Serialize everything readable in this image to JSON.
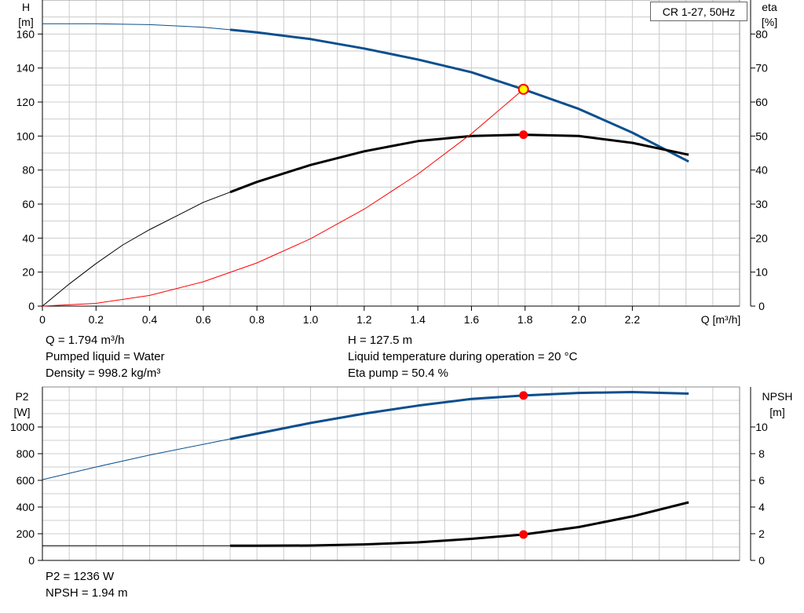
{
  "legend": "CR 1-27, 50Hz",
  "info_top": {
    "q": "Q = 1.794 m³/h",
    "liquid": "Pumped liquid = Water",
    "density": "Density = 998.2 kg/m³",
    "h": "H = 127.5 m",
    "temperature": "Liquid temperature during operation = 20 °C",
    "eta": "Eta pump = 50.4 %"
  },
  "info_bottom": {
    "p2": "P2 = 1236 W",
    "npsh": "NPSH = 1.94 m"
  },
  "colors": {
    "head": "#0b4f8e",
    "eta": "#000000",
    "system": "#ff0000",
    "grid": "#cccccc",
    "duty": "#ff0000",
    "duty_head_fill": "#ffff00"
  },
  "chart_data": [
    {
      "type": "line",
      "name": "top",
      "xlabel": "Q [m³/h]",
      "ylabel_left": [
        "H",
        "[m]"
      ],
      "ylabel_right": [
        "eta",
        "[%]"
      ],
      "xlim": [
        0,
        2.6
      ],
      "ylim_left": [
        0,
        180
      ],
      "ylim_right": [
        0,
        90
      ],
      "x_ticks": [
        "0",
        "0.2",
        "0.4",
        "0.6",
        "0.8",
        "1.0",
        "1.2",
        "1.4",
        "1.6",
        "1.8",
        "2.0",
        "2.2"
      ],
      "x_tick_values": [
        0,
        0.2,
        0.4,
        0.6,
        0.8,
        1.0,
        1.2,
        1.4,
        1.6,
        1.8,
        2.0,
        2.2
      ],
      "y_ticks_left": [
        0,
        20,
        40,
        60,
        80,
        100,
        120,
        140,
        160
      ],
      "y_ticks_right": [
        0,
        10,
        20,
        30,
        40,
        50,
        60,
        70,
        80
      ],
      "grid": true,
      "series": [
        {
          "axis": "left",
          "color": "#0b4f8e",
          "thin_until": 0.7,
          "x": [
            0,
            0.2,
            0.4,
            0.6,
            0.7,
            0.8,
            1.0,
            1.2,
            1.4,
            1.6,
            1.794,
            2.0,
            2.2,
            2.41
          ],
          "y": [
            166,
            166,
            165.5,
            164,
            162.5,
            161,
            157,
            151.5,
            145,
            137.5,
            127.5,
            116,
            102,
            85
          ]
        },
        {
          "axis": "right",
          "color": "#000000",
          "thin_until": 0.7,
          "x": [
            0,
            0.1,
            0.2,
            0.3,
            0.4,
            0.5,
            0.6,
            0.7,
            0.8,
            1.0,
            1.2,
            1.4,
            1.6,
            1.794,
            2.0,
            2.2,
            2.41
          ],
          "y": [
            0,
            6.5,
            12.5,
            18,
            22.5,
            26.5,
            30.5,
            33.5,
            36.5,
            41.5,
            45.5,
            48.5,
            50,
            50.4,
            50,
            48,
            44.5
          ]
        },
        {
          "axis": "left",
          "color": "#ff0000",
          "thin_until": 9,
          "x": [
            0,
            0.2,
            0.4,
            0.6,
            0.8,
            1.0,
            1.2,
            1.4,
            1.6,
            1.794
          ],
          "y": [
            0,
            1.6,
            6.3,
            14.3,
            25.4,
            39.6,
            57,
            77.6,
            101.4,
            127.5
          ]
        }
      ],
      "duty_points": [
        {
          "axis": "left",
          "x": 1.794,
          "y": 127.5,
          "style": "head"
        },
        {
          "axis": "right",
          "x": 1.794,
          "y": 50.4,
          "style": "dot"
        }
      ]
    },
    {
      "type": "line",
      "name": "bottom",
      "ylabel_left": [
        "P2",
        "[W]"
      ],
      "ylabel_right": [
        "NPSH",
        "[m]"
      ],
      "xlim": [
        0,
        2.6
      ],
      "ylim_left": [
        0,
        1300
      ],
      "ylim_right": [
        0,
        13
      ],
      "y_ticks_left": [
        0,
        200,
        400,
        600,
        800,
        1000
      ],
      "y_ticks_right": [
        0,
        2,
        4,
        6,
        8,
        10
      ],
      "grid": true,
      "series": [
        {
          "axis": "left",
          "color": "#0b4f8e",
          "thin_until": 0.7,
          "x": [
            0,
            0.2,
            0.4,
            0.6,
            0.7,
            0.8,
            1.0,
            1.2,
            1.4,
            1.6,
            1.794,
            2.0,
            2.2,
            2.41
          ],
          "y": [
            605,
            700,
            790,
            870,
            910,
            950,
            1030,
            1100,
            1160,
            1210,
            1236,
            1255,
            1262,
            1250
          ]
        },
        {
          "axis": "right",
          "color": "#000000",
          "thin_until": 0.7,
          "x": [
            0,
            0.4,
            0.7,
            0.8,
            1.0,
            1.2,
            1.4,
            1.6,
            1.794,
            2.0,
            2.2,
            2.41
          ],
          "y": [
            1.1,
            1.1,
            1.1,
            1.1,
            1.12,
            1.2,
            1.35,
            1.62,
            1.94,
            2.5,
            3.3,
            4.35
          ]
        }
      ],
      "duty_points": [
        {
          "axis": "left",
          "x": 1.794,
          "y": 1236,
          "style": "dot"
        },
        {
          "axis": "right",
          "x": 1.794,
          "y": 1.94,
          "style": "dot"
        }
      ]
    }
  ]
}
